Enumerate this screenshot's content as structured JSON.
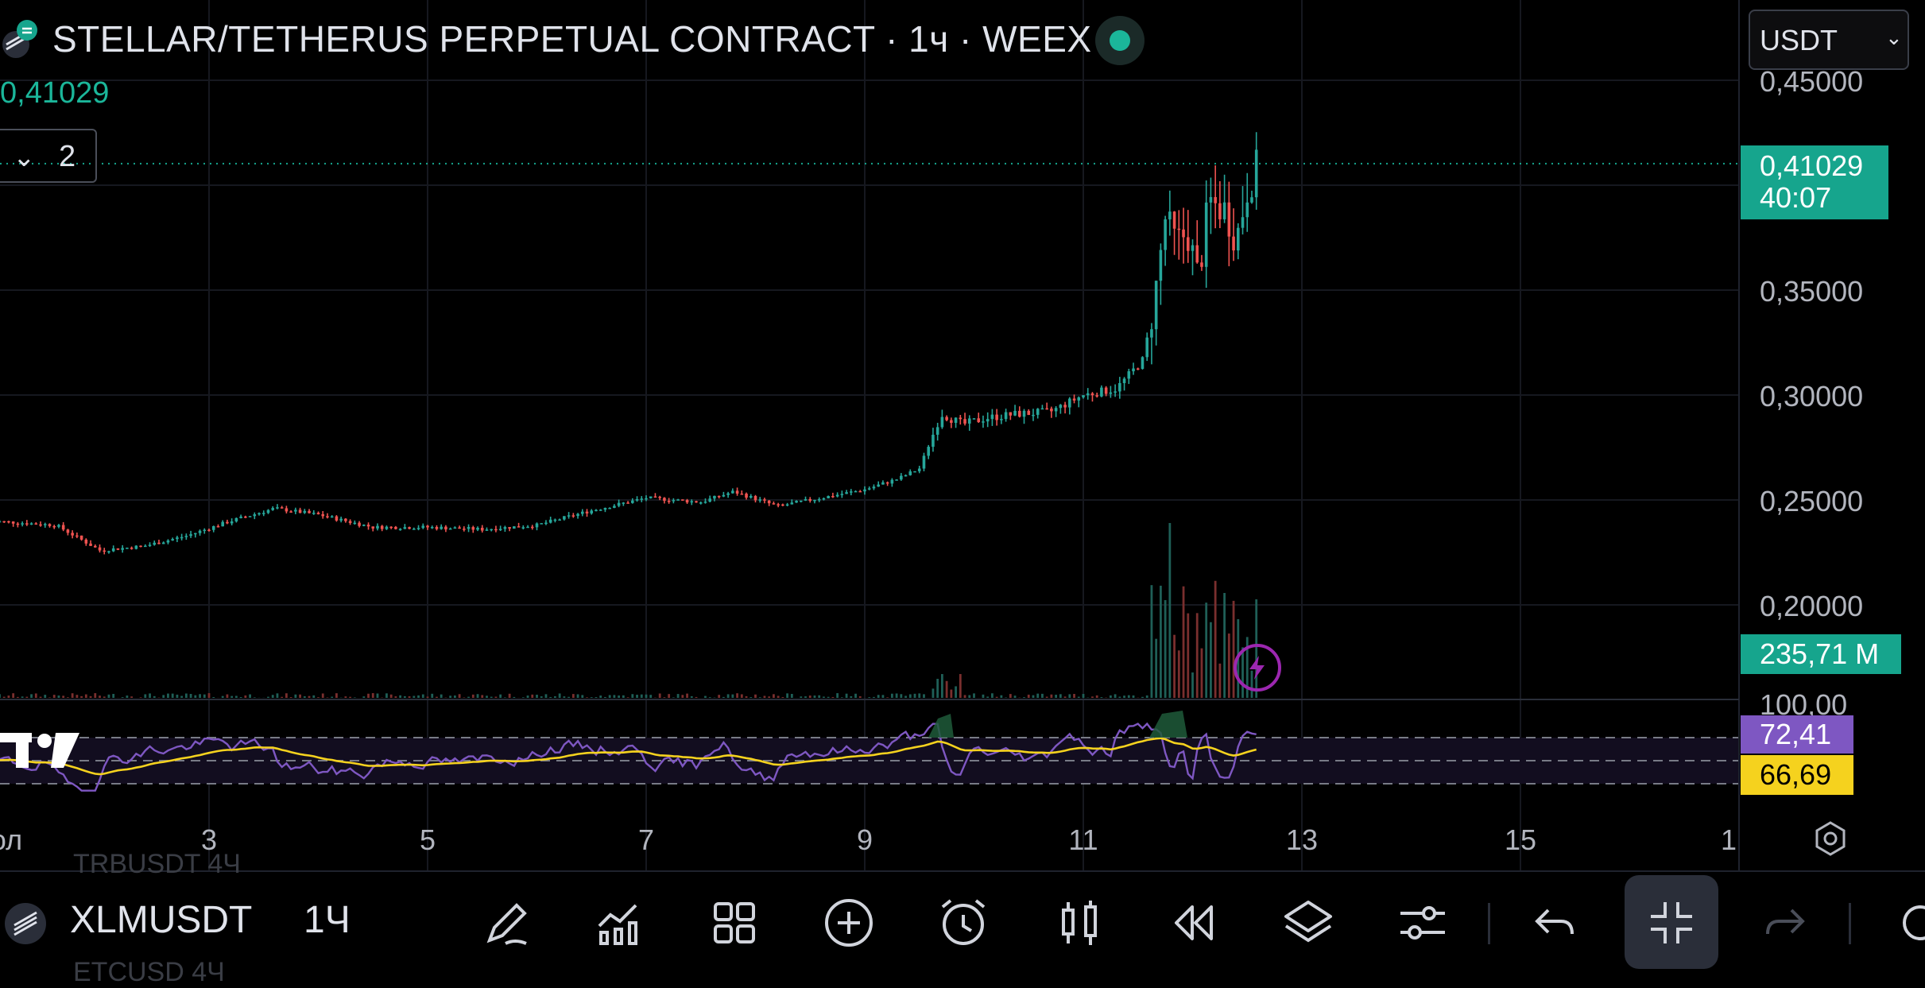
{
  "header": {
    "title": "STELLAR/TETHERUS PERPETUAL CONTRACT · 1ч · WEEX",
    "current_value": "0,41029",
    "collapse_count": "2",
    "currency": "USDT"
  },
  "price_axis": {
    "labels": [
      "0,45000",
      "0,35000",
      "0,30000",
      "0,25000",
      "0,20000",
      "100,00"
    ],
    "last_price": "0,41029",
    "countdown": "40:07",
    "volume": "235,71 M",
    "rsi_value": "72,41",
    "rsi_ma_value": "66,69"
  },
  "time_axis": {
    "labels": [
      "ол",
      "3",
      "5",
      "7",
      "9",
      "11",
      "13",
      "15",
      "1"
    ]
  },
  "toolbar": {
    "symbol": "XLMUSDT",
    "timeframe": "1Ч",
    "ghost_top": "TRBUSDT      4Ч",
    "ghost_bottom": "ETCUSD        4Ч",
    "icons": [
      "draw-pencil-icon",
      "indicators-icon",
      "grid-layout-icon",
      "add-circle-icon",
      "alarm-icon",
      "candles-icon",
      "replay-icon",
      "layers-icon",
      "settings-sliders-icon",
      "undo-icon",
      "collapse-icon",
      "redo-icon",
      "more-icon"
    ]
  },
  "colors": {
    "up": "#26a69a",
    "down": "#ef5350",
    "accent": "#16a58d",
    "rsi": "#7e57c2",
    "rsi_ma": "#f5d21e",
    "background": "#000000"
  },
  "chart_data": {
    "type": "candlestick",
    "symbol": "XLMUSDT",
    "interval": "1h",
    "x_ticks": [
      "ол",
      "3",
      "5",
      "7",
      "9",
      "11",
      "13",
      "15",
      "1"
    ],
    "y_ticks": [
      0.2,
      0.25,
      0.3,
      0.35,
      0.45
    ],
    "ylim": [
      0.18,
      0.46
    ],
    "last_price": 0.41029,
    "price_path": [
      [
        1,
        0.24
      ],
      [
        1.6,
        0.238
      ],
      [
        2.0,
        0.226
      ],
      [
        2.4,
        0.228
      ],
      [
        2.8,
        0.233
      ],
      [
        3.2,
        0.24
      ],
      [
        3.6,
        0.246
      ],
      [
        4.0,
        0.243
      ],
      [
        4.5,
        0.237
      ],
      [
        5.0,
        0.237
      ],
      [
        5.5,
        0.236
      ],
      [
        6.0,
        0.238
      ],
      [
        6.5,
        0.245
      ],
      [
        7.0,
        0.251
      ],
      [
        7.5,
        0.249
      ],
      [
        7.8,
        0.254
      ],
      [
        8.2,
        0.247
      ],
      [
        8.6,
        0.251
      ],
      [
        9.0,
        0.255
      ],
      [
        9.3,
        0.26
      ],
      [
        9.5,
        0.265
      ],
      [
        9.7,
        0.291
      ],
      [
        9.9,
        0.286
      ],
      [
        10.1,
        0.289
      ],
      [
        10.4,
        0.291
      ],
      [
        10.7,
        0.292
      ],
      [
        11.0,
        0.3
      ],
      [
        11.3,
        0.303
      ],
      [
        11.55,
        0.317
      ],
      [
        11.65,
        0.345
      ],
      [
        11.75,
        0.384
      ],
      [
        11.85,
        0.372
      ],
      [
        11.95,
        0.378
      ],
      [
        12.05,
        0.356
      ],
      [
        12.15,
        0.392
      ],
      [
        12.3,
        0.388
      ],
      [
        12.4,
        0.374
      ],
      [
        12.5,
        0.398
      ],
      [
        12.6,
        0.41029
      ]
    ],
    "rsi": {
      "levels": [
        70,
        50,
        30
      ],
      "upper_label": 100,
      "value": 72.41,
      "ma": 66.69
    },
    "volume_last": "235,71 M"
  }
}
